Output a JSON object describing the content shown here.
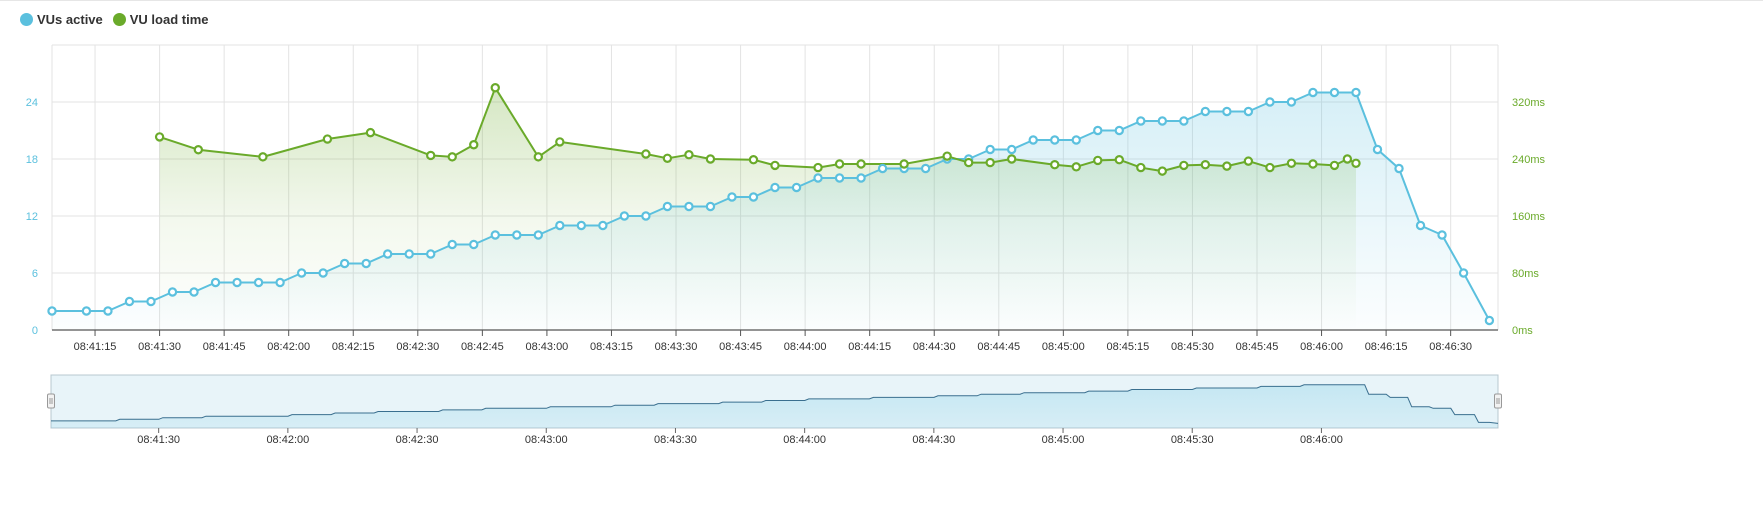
{
  "legend": {
    "items": [
      {
        "label": "VUs active",
        "color": "#5bc0de"
      },
      {
        "label": "VU load time",
        "color": "#6aaa2a"
      }
    ]
  },
  "colors": {
    "vus": "#5bc0de",
    "load": "#6aaa2a",
    "grid": "#e3e3e3",
    "axis": "#666666"
  },
  "chart_data": {
    "type": "line",
    "series": [
      {
        "name": "VUs active",
        "axis": "left",
        "values": [
          [
            "08:41:05",
            2
          ],
          [
            "08:41:13",
            2
          ],
          [
            "08:41:18",
            2
          ],
          [
            "08:41:23",
            3
          ],
          [
            "08:41:28",
            3
          ],
          [
            "08:41:33",
            4
          ],
          [
            "08:41:38",
            4
          ],
          [
            "08:41:43",
            5
          ],
          [
            "08:41:48",
            5
          ],
          [
            "08:41:53",
            5
          ],
          [
            "08:41:58",
            5
          ],
          [
            "08:42:03",
            6
          ],
          [
            "08:42:08",
            6
          ],
          [
            "08:42:13",
            7
          ],
          [
            "08:42:18",
            7
          ],
          [
            "08:42:23",
            8
          ],
          [
            "08:42:28",
            8
          ],
          [
            "08:42:33",
            8
          ],
          [
            "08:42:38",
            9
          ],
          [
            "08:42:43",
            9
          ],
          [
            "08:42:48",
            10
          ],
          [
            "08:42:53",
            10
          ],
          [
            "08:42:58",
            10
          ],
          [
            "08:43:03",
            11
          ],
          [
            "08:43:08",
            11
          ],
          [
            "08:43:13",
            11
          ],
          [
            "08:43:18",
            12
          ],
          [
            "08:43:23",
            12
          ],
          [
            "08:43:28",
            13
          ],
          [
            "08:43:33",
            13
          ],
          [
            "08:43:38",
            13
          ],
          [
            "08:43:43",
            14
          ],
          [
            "08:43:48",
            14
          ],
          [
            "08:43:53",
            15
          ],
          [
            "08:43:58",
            15
          ],
          [
            "08:44:03",
            16
          ],
          [
            "08:44:08",
            16
          ],
          [
            "08:44:13",
            16
          ],
          [
            "08:44:18",
            17
          ],
          [
            "08:44:23",
            17
          ],
          [
            "08:44:28",
            17
          ],
          [
            "08:44:33",
            18
          ],
          [
            "08:44:38",
            18
          ],
          [
            "08:44:43",
            19
          ],
          [
            "08:44:48",
            19
          ],
          [
            "08:44:53",
            20
          ],
          [
            "08:44:58",
            20
          ],
          [
            "08:45:03",
            20
          ],
          [
            "08:45:08",
            21
          ],
          [
            "08:45:13",
            21
          ],
          [
            "08:45:18",
            22
          ],
          [
            "08:45:23",
            22
          ],
          [
            "08:45:28",
            22
          ],
          [
            "08:45:33",
            23
          ],
          [
            "08:45:38",
            23
          ],
          [
            "08:45:43",
            23
          ],
          [
            "08:45:48",
            24
          ],
          [
            "08:45:53",
            24
          ],
          [
            "08:45:58",
            25
          ],
          [
            "08:46:03",
            25
          ],
          [
            "08:46:08",
            25
          ],
          [
            "08:46:13",
            19
          ],
          [
            "08:46:18",
            17
          ],
          [
            "08:46:23",
            11
          ],
          [
            "08:46:28",
            10
          ],
          [
            "08:46:33",
            6
          ],
          [
            "08:46:39",
            1
          ]
        ]
      },
      {
        "name": "VU load time",
        "axis": "right",
        "values": [
          [
            "08:41:30",
            271
          ],
          [
            "08:41:39",
            253
          ],
          [
            "08:41:54",
            243
          ],
          [
            "08:42:09",
            268
          ],
          [
            "08:42:19",
            277
          ],
          [
            "08:42:33",
            245
          ],
          [
            "08:42:38",
            243
          ],
          [
            "08:42:43",
            260
          ],
          [
            "08:42:48",
            340
          ],
          [
            "08:42:58",
            243
          ],
          [
            "08:43:03",
            264
          ],
          [
            "08:43:23",
            247
          ],
          [
            "08:43:28",
            241
          ],
          [
            "08:43:33",
            246
          ],
          [
            "08:43:38",
            240
          ],
          [
            "08:43:48",
            239
          ],
          [
            "08:43:53",
            231
          ],
          [
            "08:44:03",
            228
          ],
          [
            "08:44:08",
            233
          ],
          [
            "08:44:13",
            233
          ],
          [
            "08:44:23",
            233
          ],
          [
            "08:44:33",
            244
          ],
          [
            "08:44:38",
            235
          ],
          [
            "08:44:43",
            235
          ],
          [
            "08:44:48",
            240
          ],
          [
            "08:44:58",
            232
          ],
          [
            "08:45:03",
            229
          ],
          [
            "08:45:08",
            238
          ],
          [
            "08:45:13",
            239
          ],
          [
            "08:45:18",
            228
          ],
          [
            "08:45:23",
            223
          ],
          [
            "08:45:28",
            231
          ],
          [
            "08:45:33",
            232
          ],
          [
            "08:45:38",
            230
          ],
          [
            "08:45:43",
            237
          ],
          [
            "08:45:48",
            228
          ],
          [
            "08:45:53",
            234
          ],
          [
            "08:45:58",
            233
          ],
          [
            "08:46:03",
            231
          ],
          [
            "08:46:06",
            240
          ],
          [
            "08:46:08",
            234
          ]
        ]
      }
    ],
    "y_left": {
      "ticks": [
        0,
        6,
        12,
        18,
        24
      ],
      "range": [
        0,
        30
      ]
    },
    "y_right": {
      "ticks": [
        "0ms",
        "80ms",
        "160ms",
        "240ms",
        "320ms"
      ],
      "tick_values": [
        0,
        80,
        160,
        240,
        320
      ],
      "range": [
        0,
        400
      ]
    },
    "x_range": [
      "08:41:05",
      "08:46:41"
    ],
    "x_ticks": [
      "08:41:15",
      "08:41:30",
      "08:41:45",
      "08:42:00",
      "08:42:15",
      "08:42:30",
      "08:42:45",
      "08:43:00",
      "08:43:15",
      "08:43:30",
      "08:43:45",
      "08:44:00",
      "08:44:15",
      "08:44:30",
      "08:44:45",
      "08:45:00",
      "08:45:15",
      "08:45:30",
      "08:45:45",
      "08:46:00",
      "08:46:15",
      "08:46:30"
    ],
    "navigator_ticks": [
      "08:41:30",
      "08:42:00",
      "08:42:30",
      "08:43:00",
      "08:43:30",
      "08:44:00",
      "08:44:30",
      "08:45:00",
      "08:45:30",
      "08:46:00"
    ],
    "grid": true,
    "legend_position": "top-left"
  }
}
